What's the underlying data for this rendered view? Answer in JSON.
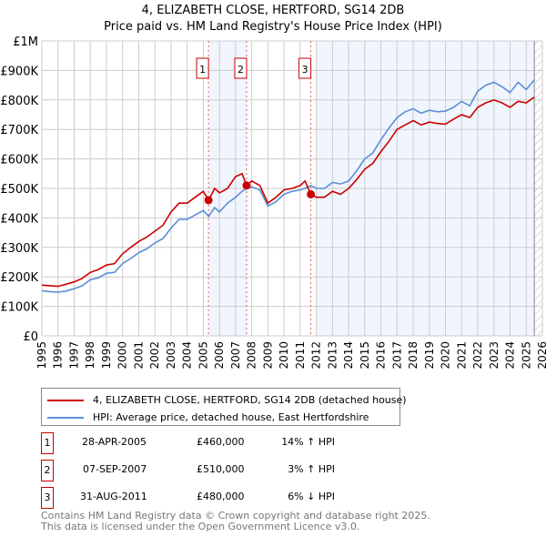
{
  "chart_data": {
    "type": "line",
    "title": "4, ELIZABETH CLOSE, HERTFORD, SG14 2DB",
    "subtitle": "Price paid vs. HM Land Registry's House Price Index (HPI)",
    "xlim": [
      1995,
      2026
    ],
    "ylim": [
      0,
      1000000
    ],
    "yticks": [
      {
        "v": 0,
        "label": "£0"
      },
      {
        "v": 100000,
        "label": "£100K"
      },
      {
        "v": 200000,
        "label": "£200K"
      },
      {
        "v": 300000,
        "label": "£300K"
      },
      {
        "v": 400000,
        "label": "£400K"
      },
      {
        "v": 500000,
        "label": "£500K"
      },
      {
        "v": 600000,
        "label": "£600K"
      },
      {
        "v": 700000,
        "label": "£700K"
      },
      {
        "v": 800000,
        "label": "£800K"
      },
      {
        "v": 900000,
        "label": "£900K"
      },
      {
        "v": 1000000,
        "label": "£1M"
      }
    ],
    "xticks": [
      "1995",
      "1996",
      "1997",
      "1998",
      "1999",
      "2000",
      "2001",
      "2002",
      "2003",
      "2004",
      "2005",
      "2006",
      "2007",
      "2008",
      "2009",
      "2010",
      "2011",
      "2012",
      "2013",
      "2014",
      "2015",
      "2016",
      "2017",
      "2018",
      "2019",
      "2020",
      "2021",
      "2022",
      "2023",
      "2024",
      "2025",
      "2026"
    ],
    "series": [
      {
        "name": "4, ELIZABETH CLOSE, HERTFORD, SG14 2DB (detached house)",
        "color": "#cc0000",
        "x": [
          1995,
          1995.5,
          1996,
          1996.5,
          1997,
          1997.5,
          1998,
          1998.5,
          1999,
          1999.5,
          2000,
          2000.5,
          2001,
          2001.5,
          2002,
          2002.5,
          2003,
          2003.5,
          2004,
          2004.5,
          2005,
          2005.33,
          2005.7,
          2006,
          2006.5,
          2007,
          2007.4,
          2007.68,
          2008,
          2008.5,
          2009,
          2009.5,
          2010,
          2010.5,
          2011,
          2011.3,
          2011.66,
          2012,
          2012.5,
          2013,
          2013.5,
          2014,
          2014.5,
          2015,
          2015.5,
          2016,
          2016.5,
          2017,
          2017.5,
          2018,
          2018.5,
          2019,
          2019.5,
          2020,
          2020.5,
          2021,
          2021.5,
          2022,
          2022.5,
          2023,
          2023.5,
          2024,
          2024.5,
          2025,
          2025.5
        ],
        "y": [
          172000,
          170000,
          168000,
          175000,
          183000,
          195000,
          215000,
          225000,
          240000,
          245000,
          278000,
          300000,
          320000,
          335000,
          355000,
          375000,
          420000,
          450000,
          450000,
          470000,
          490000,
          460000,
          500000,
          485000,
          500000,
          540000,
          550000,
          510000,
          525000,
          510000,
          450000,
          470000,
          495000,
          500000,
          510000,
          525000,
          480000,
          470000,
          470000,
          490000,
          480000,
          500000,
          530000,
          565000,
          585000,
          625000,
          660000,
          700000,
          715000,
          730000,
          715000,
          725000,
          720000,
          718000,
          735000,
          750000,
          740000,
          775000,
          790000,
          800000,
          790000,
          775000,
          795000,
          790000,
          810000
        ]
      },
      {
        "name": "HPI: Average price, detached house, East Hertfordshire",
        "color": "#5b8fd6",
        "x": [
          1995,
          1995.5,
          1996,
          1996.5,
          1997,
          1997.5,
          1998,
          1998.5,
          1999,
          1999.5,
          2000,
          2000.5,
          2001,
          2001.5,
          2002,
          2002.5,
          2003,
          2003.5,
          2004,
          2004.5,
          2005,
          2005.33,
          2005.7,
          2006,
          2006.5,
          2007,
          2007.4,
          2007.68,
          2008,
          2008.5,
          2009,
          2009.5,
          2010,
          2010.5,
          2011,
          2011.3,
          2011.66,
          2012,
          2012.5,
          2013,
          2013.5,
          2014,
          2014.5,
          2015,
          2015.5,
          2016,
          2016.5,
          2017,
          2017.5,
          2018,
          2018.5,
          2019,
          2019.5,
          2020,
          2020.5,
          2021,
          2021.5,
          2022,
          2022.5,
          2023,
          2023.5,
          2024,
          2024.5,
          2025,
          2025.5
        ],
        "y": [
          153000,
          150000,
          148000,
          152000,
          160000,
          170000,
          190000,
          197000,
          212000,
          215000,
          245000,
          262000,
          282000,
          295000,
          315000,
          330000,
          365000,
          395000,
          395000,
          410000,
          425000,
          405000,
          435000,
          420000,
          450000,
          470000,
          490000,
          500000,
          505000,
          495000,
          440000,
          455000,
          480000,
          490000,
          495000,
          500000,
          510000,
          500000,
          500000,
          520000,
          515000,
          525000,
          560000,
          600000,
          620000,
          665000,
          705000,
          740000,
          760000,
          770000,
          755000,
          765000,
          760000,
          762000,
          775000,
          795000,
          780000,
          830000,
          850000,
          860000,
          845000,
          825000,
          860000,
          835000,
          868000
        ]
      }
    ],
    "sales": [
      {
        "id": "1",
        "date": "28-APR-2005",
        "year": 2005.32,
        "price": 460000,
        "price_label": "£460,000",
        "hpi": "14% ↑ HPI"
      },
      {
        "id": "2",
        "date": "07-SEP-2007",
        "year": 2007.68,
        "price": 510000,
        "price_label": "£510,000",
        "hpi": "3% ↑ HPI"
      },
      {
        "id": "3",
        "date": "31-AUG-2011",
        "year": 2011.66,
        "price": 480000,
        "price_label": "£480,000",
        "hpi": "6% ↓ HPI"
      }
    ],
    "forecast_start": 2025.5
  },
  "footer": {
    "line1": "Contains HM Land Registry data © Crown copyright and database right 2025.",
    "line2": "This data is licensed under the Open Government Licence v3.0."
  }
}
